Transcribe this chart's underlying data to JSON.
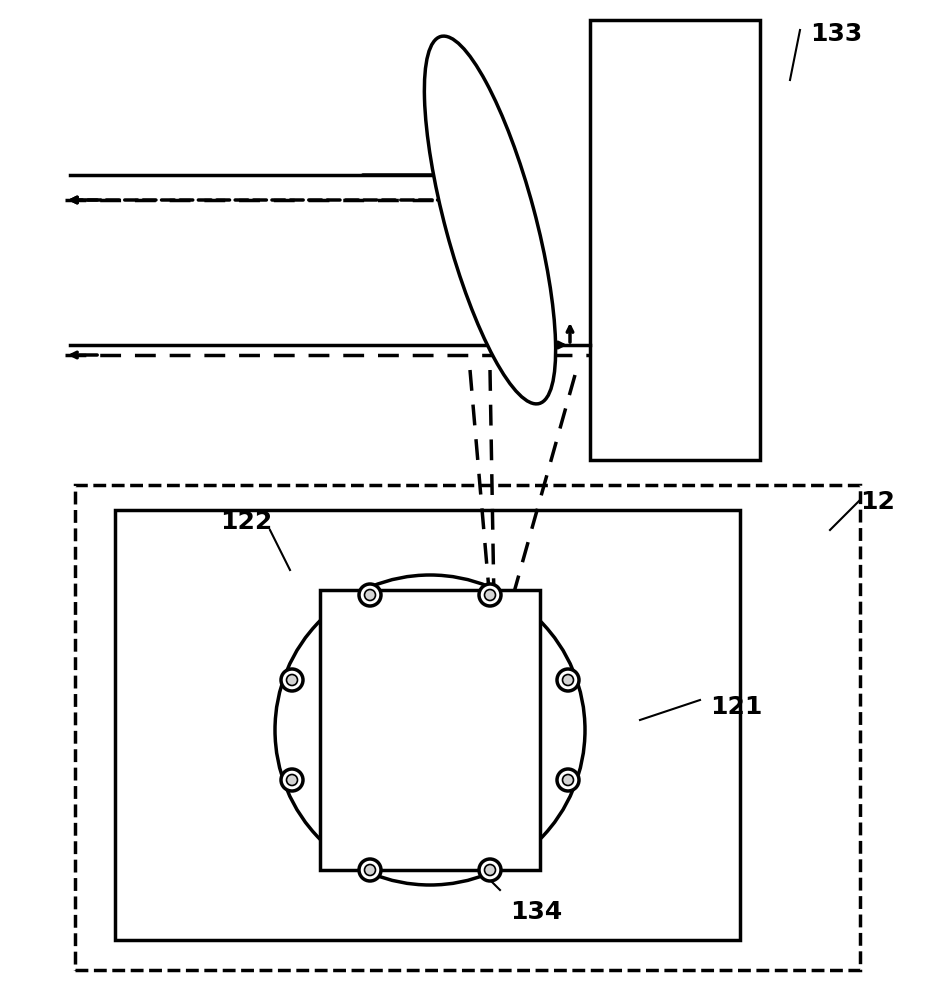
{
  "bg_color": "#ffffff",
  "line_color": "#000000",
  "dashed_color": "#000000",
  "label_133": "133",
  "label_12": "12",
  "label_121": "121",
  "label_122": "122",
  "label_134": "134",
  "fig_width": 9.43,
  "fig_height": 10.0
}
